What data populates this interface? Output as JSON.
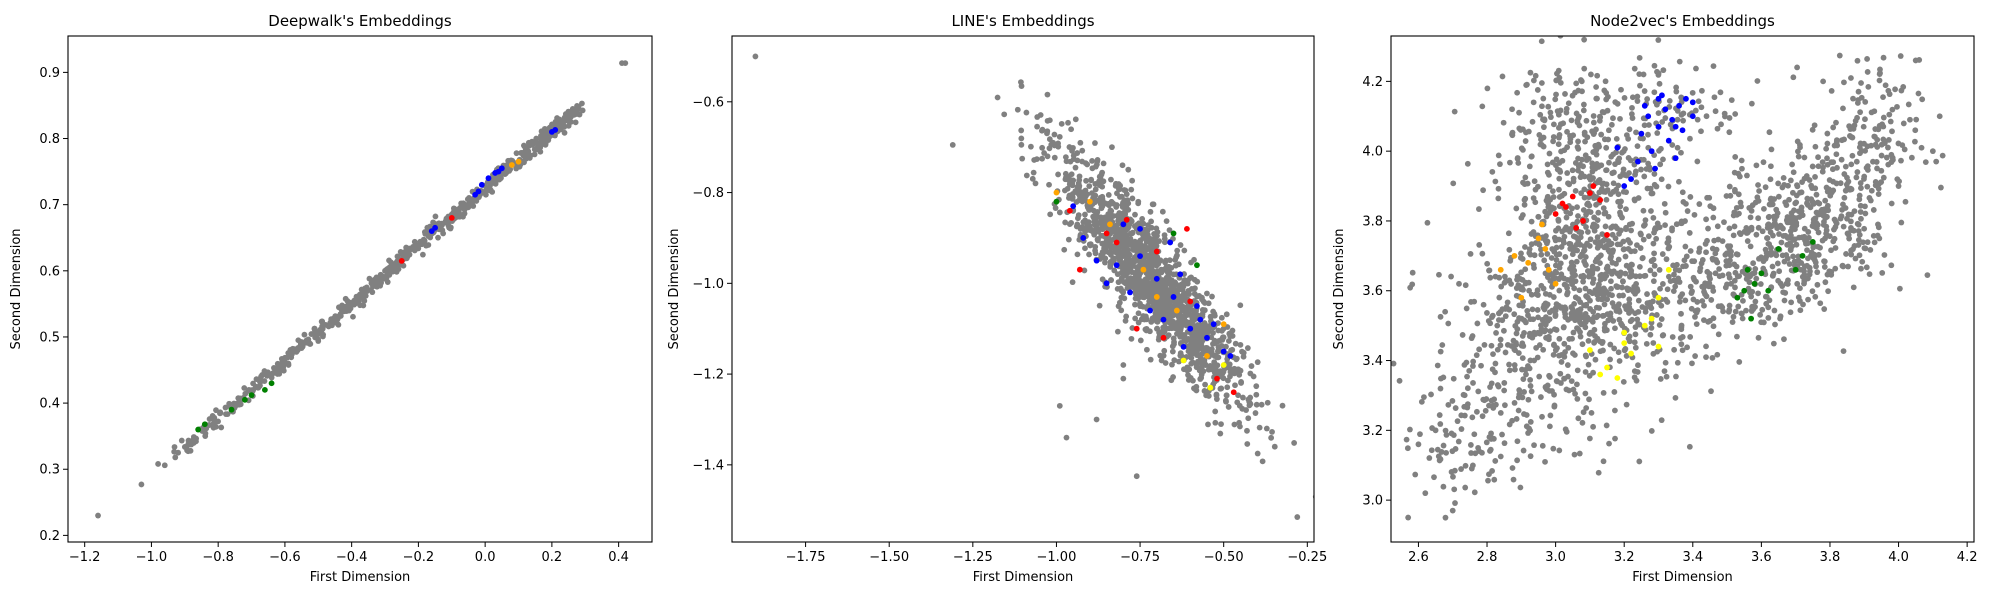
{
  "chart_data": [
    {
      "type": "scatter",
      "title": "Deepwalk's Embeddings",
      "xlabel": "First Dimension",
      "ylabel": "Second Dimension",
      "xlim": [
        -1.25,
        0.5
      ],
      "ylim": [
        0.19,
        0.955
      ],
      "xticks": [
        -1.2,
        -1.0,
        -0.8,
        -0.6,
        -0.4,
        -0.2,
        0.0,
        0.2,
        0.4
      ],
      "xtick_labels": [
        "−1.2",
        "−1.0",
        "−0.8",
        "−0.6",
        "−0.4",
        "−0.2",
        "0.0",
        "0.2",
        "0.4"
      ],
      "yticks": [
        0.2,
        0.3,
        0.4,
        0.5,
        0.6,
        0.7,
        0.8,
        0.9
      ],
      "ytick_labels": [
        "0.2",
        "0.3",
        "0.4",
        "0.5",
        "0.6",
        "0.7",
        "0.8",
        "0.9"
      ],
      "grid": false,
      "series": [
        {
          "color": "#808080",
          "points": [
            [
              -1.16,
              0.23
            ],
            [
              -1.03,
              0.277
            ],
            [
              -0.98,
              0.308
            ],
            [
              -0.96,
              0.306
            ],
            [
              -0.92,
              0.325
            ],
            [
              0.41,
              0.914
            ],
            [
              0.42,
              0.914
            ],
            [
              0.28,
              0.848
            ],
            [
              0.29,
              0.853
            ]
          ],
          "line_segment": {
            "x0": -0.92,
            "y0": 0.325,
            "x1": 0.28,
            "y1": 0.846,
            "count": 650,
            "jitter_x": 0.012,
            "jitter_y": 0.004
          }
        },
        {
          "color": "#0000ff",
          "points": [
            [
              -0.16,
              0.66
            ],
            [
              -0.15,
              0.665
            ],
            [
              -0.03,
              0.715
            ],
            [
              -0.02,
              0.72
            ],
            [
              -0.01,
              0.73
            ],
            [
              0.01,
              0.74
            ],
            [
              0.03,
              0.748
            ],
            [
              0.04,
              0.75
            ],
            [
              0.05,
              0.755
            ],
            [
              0.2,
              0.81
            ],
            [
              0.21,
              0.813
            ]
          ]
        },
        {
          "color": "#008000",
          "points": [
            [
              -0.86,
              0.36
            ],
            [
              -0.84,
              0.368
            ],
            [
              -0.76,
              0.39
            ],
            [
              -0.72,
              0.405
            ],
            [
              -0.7,
              0.412
            ],
            [
              -0.66,
              0.42
            ],
            [
              -0.64,
              0.43
            ]
          ]
        },
        {
          "color": "#ff0000",
          "points": [
            [
              -0.25,
              0.615
            ],
            [
              -0.1,
              0.68
            ]
          ]
        },
        {
          "color": "#ffa500",
          "points": [
            [
              0.08,
              0.76
            ],
            [
              0.1,
              0.765
            ]
          ]
        }
      ]
    },
    {
      "type": "scatter",
      "title": "LINE's Embeddings",
      "xlabel": "First Dimension",
      "ylabel": "Second Dimension",
      "xlim": [
        -1.97,
        -0.23
      ],
      "ylim": [
        -1.57,
        -0.455
      ],
      "xticks": [
        -1.75,
        -1.5,
        -1.25,
        -1.0,
        -0.75,
        -0.5,
        -0.25
      ],
      "xtick_labels": [
        "−1.75",
        "−1.50",
        "−1.25",
        "−1.00",
        "−0.75",
        "−0.50",
        "−0.25"
      ],
      "yticks": [
        -1.4,
        -1.2,
        -1.0,
        -0.8,
        -0.6
      ],
      "ytick_labels": [
        "−1.4",
        "−1.2",
        "−1.0",
        "−0.8",
        "−0.6"
      ],
      "grid": false,
      "series": [
        {
          "color": "#808080",
          "points": [
            [
              -1.9,
              -0.5
            ],
            [
              -1.31,
              -0.695
            ],
            [
              -0.76,
              -1.425
            ],
            [
              -0.28,
              -1.515
            ],
            [
              -0.97,
              -1.34
            ],
            [
              -0.99,
              -1.27
            ],
            [
              -0.88,
              -1.3
            ],
            [
              -0.8,
              -1.18
            ],
            [
              -0.8,
              -1.21
            ]
          ],
          "cloud": {
            "cx": -0.72,
            "cy": -0.99,
            "along_x": 0.25,
            "along_y": -0.245,
            "n_along": 0.55,
            "n_perp": 0.045,
            "count": 1500
          }
        },
        {
          "color": "#0000ff",
          "points": [
            [
              -0.95,
              -0.83
            ],
            [
              -0.92,
              -0.9
            ],
            [
              -0.88,
              -0.95
            ],
            [
              -0.85,
              -1.0
            ],
            [
              -0.82,
              -0.96
            ],
            [
              -0.8,
              -0.87
            ],
            [
              -0.78,
              -1.02
            ],
            [
              -0.75,
              -0.94
            ],
            [
              -0.72,
              -1.06
            ],
            [
              -0.7,
              -0.99
            ],
            [
              -0.68,
              -1.08
            ],
            [
              -0.65,
              -1.03
            ],
            [
              -0.63,
              -0.98
            ],
            [
              -0.6,
              -1.1
            ],
            [
              -0.58,
              -1.05
            ],
            [
              -0.55,
              -1.12
            ],
            [
              -0.53,
              -1.09
            ],
            [
              -0.5,
              -1.15
            ],
            [
              -0.48,
              -1.16
            ],
            [
              -0.75,
              -0.88
            ],
            [
              -0.66,
              -0.91
            ],
            [
              -0.62,
              -1.14
            ],
            [
              -0.57,
              -1.08
            ]
          ]
        },
        {
          "color": "#ff0000",
          "points": [
            [
              -0.96,
              -0.84
            ],
            [
              -0.85,
              -0.89
            ],
            [
              -0.82,
              -0.91
            ],
            [
              -0.79,
              -0.86
            ],
            [
              -0.93,
              -0.97
            ],
            [
              -0.7,
              -0.93
            ],
            [
              -0.76,
              -1.1
            ],
            [
              -0.68,
              -1.12
            ],
            [
              -0.6,
              -1.04
            ],
            [
              -0.52,
              -1.21
            ],
            [
              -0.47,
              -1.24
            ],
            [
              -0.61,
              -0.88
            ]
          ]
        },
        {
          "color": "#008000",
          "points": [
            [
              -1.0,
              -0.82
            ],
            [
              -0.65,
              -0.89
            ],
            [
              -0.58,
              -0.96
            ]
          ]
        },
        {
          "color": "#ffa500",
          "points": [
            [
              -1.0,
              -0.8
            ],
            [
              -0.9,
              -0.82
            ],
            [
              -0.84,
              -0.87
            ],
            [
              -0.74,
              -0.97
            ],
            [
              -0.7,
              -1.03
            ],
            [
              -0.64,
              -1.06
            ],
            [
              -0.55,
              -1.16
            ],
            [
              -0.5,
              -1.09
            ]
          ]
        },
        {
          "color": "#ffff00",
          "points": [
            [
              -0.54,
              -1.23
            ],
            [
              -0.5,
              -1.18
            ],
            [
              -0.62,
              -1.17
            ]
          ]
        }
      ]
    },
    {
      "type": "scatter",
      "title": "Node2vec's Embeddings",
      "xlabel": "First Dimension",
      "ylabel": "Second Dimension",
      "xlim": [
        2.52,
        4.22
      ],
      "ylim": [
        2.88,
        4.33
      ],
      "xticks": [
        2.6,
        2.8,
        3.0,
        3.2,
        3.4,
        3.6,
        3.8,
        4.0,
        4.2
      ],
      "xtick_labels": [
        "2.6",
        "2.8",
        "3.0",
        "3.2",
        "3.4",
        "3.6",
        "3.8",
        "4.0",
        "4.2"
      ],
      "yticks": [
        3.0,
        3.2,
        3.4,
        3.6,
        3.8,
        4.0,
        4.2
      ],
      "ytick_labels": [
        "3.0",
        "3.2",
        "3.4",
        "3.6",
        "3.8",
        "4.0",
        "4.2"
      ],
      "grid": false,
      "series": [
        {
          "color": "#808080",
          "points": [
            [
              2.57,
              2.95
            ],
            [
              2.62,
              3.02
            ],
            [
              2.7,
              2.97
            ],
            [
              2.6,
              3.16
            ],
            [
              2.65,
              3.2
            ],
            [
              4.05,
              4.26
            ],
            [
              4.12,
              4.1
            ],
            [
              4.1,
              4.0
            ],
            [
              3.98,
              3.85
            ],
            [
              4.0,
              3.9
            ],
            [
              3.78,
              4.2
            ]
          ],
          "clouds": [
            {
              "cx": 3.07,
              "cy": 3.85,
              "sx": 0.12,
              "sy": 0.22,
              "count": 650
            },
            {
              "cx": 3.2,
              "cy": 3.6,
              "sx": 0.13,
              "sy": 0.16,
              "count": 320
            },
            {
              "cx": 2.92,
              "cy": 3.45,
              "sx": 0.14,
              "sy": 0.15,
              "count": 300
            },
            {
              "cx": 2.75,
              "cy": 3.18,
              "sx": 0.08,
              "sy": 0.09,
              "count": 90
            },
            {
              "cx": 3.72,
              "cy": 3.78,
              "sx": 0.12,
              "sy": 0.1,
              "count": 420
            },
            {
              "cx": 3.9,
              "cy": 4.02,
              "sx": 0.08,
              "sy": 0.12,
              "count": 160
            },
            {
              "cx": 3.5,
              "cy": 3.6,
              "sx": 0.12,
              "sy": 0.08,
              "count": 180
            },
            {
              "cx": 3.35,
              "cy": 4.12,
              "sx": 0.1,
              "sy": 0.08,
              "count": 90
            }
          ]
        },
        {
          "color": "#0000ff",
          "points": [
            [
              3.22,
              3.92
            ],
            [
              3.25,
              4.05
            ],
            [
              3.27,
              4.1
            ],
            [
              3.28,
              4.0
            ],
            [
              3.3,
              4.15
            ],
            [
              3.3,
              4.07
            ],
            [
              3.32,
              4.12
            ],
            [
              3.33,
              4.03
            ],
            [
              3.34,
              4.09
            ],
            [
              3.36,
              4.13
            ],
            [
              3.37,
              4.06
            ],
            [
              3.38,
              4.15
            ],
            [
              3.4,
              4.1
            ],
            [
              3.4,
              4.14
            ],
            [
              3.26,
              4.13
            ],
            [
              3.31,
              4.16
            ],
            [
              3.35,
              3.98
            ],
            [
              3.29,
              3.95
            ],
            [
              3.2,
              3.9
            ],
            [
              3.24,
              3.97
            ],
            [
              3.18,
              4.01
            ],
            [
              3.35,
              4.07
            ]
          ]
        },
        {
          "color": "#ff0000",
          "points": [
            [
              3.02,
              3.85
            ],
            [
              3.03,
              3.84
            ],
            [
              3.05,
              3.87
            ],
            [
              3.08,
              3.8
            ],
            [
              3.1,
              3.88
            ],
            [
              3.13,
              3.86
            ],
            [
              3.15,
              3.76
            ],
            [
              3.0,
              3.82
            ],
            [
              3.06,
              3.78
            ],
            [
              3.11,
              3.9
            ]
          ]
        },
        {
          "color": "#ffa500",
          "points": [
            [
              2.84,
              3.66
            ],
            [
              2.88,
              3.7
            ],
            [
              2.92,
              3.68
            ],
            [
              2.95,
              3.75
            ],
            [
              2.97,
              3.72
            ],
            [
              2.98,
              3.66
            ],
            [
              3.0,
              3.62
            ],
            [
              2.96,
              3.79
            ],
            [
              2.9,
              3.58
            ]
          ]
        },
        {
          "color": "#ffff00",
          "points": [
            [
              3.1,
              3.43
            ],
            [
              3.15,
              3.38
            ],
            [
              3.18,
              3.35
            ],
            [
              3.2,
              3.45
            ],
            [
              3.22,
              3.42
            ],
            [
              3.26,
              3.5
            ],
            [
              3.3,
              3.44
            ],
            [
              3.3,
              3.58
            ],
            [
              3.33,
              3.66
            ],
            [
              3.28,
              3.52
            ],
            [
              3.13,
              3.36
            ],
            [
              3.2,
              3.48
            ]
          ]
        },
        {
          "color": "#008000",
          "points": [
            [
              3.53,
              3.58
            ],
            [
              3.56,
              3.66
            ],
            [
              3.58,
              3.62
            ],
            [
              3.6,
              3.65
            ],
            [
              3.57,
              3.52
            ],
            [
              3.65,
              3.72
            ],
            [
              3.7,
              3.66
            ],
            [
              3.72,
              3.7
            ],
            [
              3.75,
              3.74
            ],
            [
              3.62,
              3.6
            ],
            [
              3.55,
              3.6
            ]
          ]
        }
      ]
    }
  ]
}
